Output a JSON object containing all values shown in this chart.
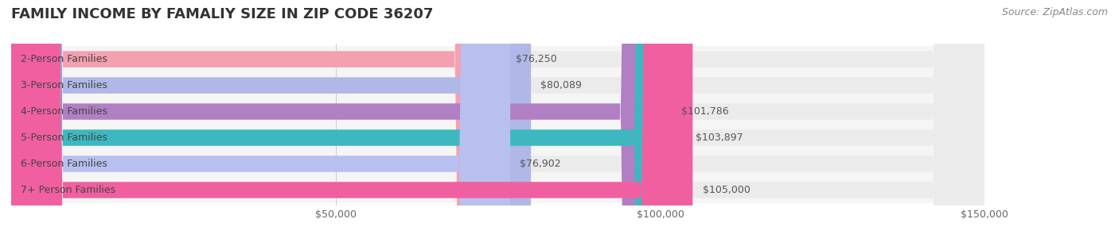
{
  "title": "FAMILY INCOME BY FAMALIY SIZE IN ZIP CODE 36207",
  "source": "Source: ZipAtlas.com",
  "categories": [
    "2-Person Families",
    "3-Person Families",
    "4-Person Families",
    "5-Person Families",
    "6-Person Families",
    "7+ Person Families"
  ],
  "values": [
    76250,
    80089,
    101786,
    103897,
    76902,
    105000
  ],
  "labels": [
    "$76,250",
    "$80,089",
    "$101,786",
    "$103,897",
    "$76,902",
    "$105,000"
  ],
  "bar_colors": [
    "#f4a0b0",
    "#b0b8e8",
    "#b07fc4",
    "#3db8c0",
    "#b8c0f0",
    "#f060a0"
  ],
  "bar_bg_color": "#ebebeb",
  "xlim": [
    0,
    150000
  ],
  "xticks": [
    0,
    50000,
    100000,
    150000
  ],
  "xtick_labels": [
    "",
    "$50,000",
    "$100,000",
    "$150,000"
  ],
  "title_fontsize": 13,
  "label_fontsize": 9,
  "tick_fontsize": 9,
  "source_fontsize": 9,
  "background_color": "#ffffff",
  "bar_height": 0.62,
  "row_bg_color": "#f5f5f5"
}
